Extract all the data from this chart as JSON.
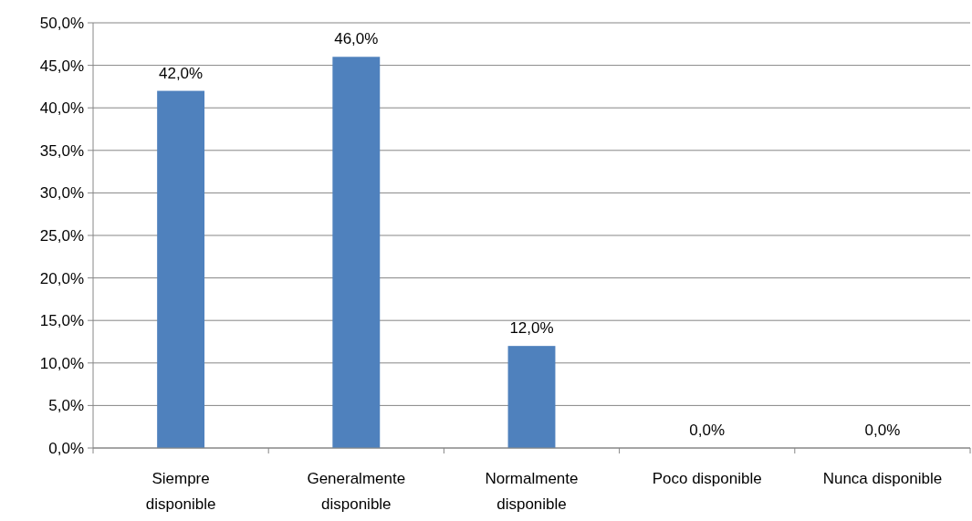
{
  "chart_data": {
    "type": "bar",
    "categories": [
      "Siempre disponible",
      "Generalmente disponible",
      "Normalmente disponible",
      "Poco disponible",
      "Nunca disponible"
    ],
    "values": [
      42.0,
      46.0,
      12.0,
      0.0,
      0.0
    ],
    "value_labels": [
      "42,0%",
      "46,0%",
      "12,0%",
      "0,0%",
      "0,0%"
    ],
    "color": "#4f81bd",
    "ylim": [
      0,
      50
    ],
    "yticks": [
      {
        "value": 0,
        "label": "0,0%"
      },
      {
        "value": 5,
        "label": "5,0%"
      },
      {
        "value": 10,
        "label": "10,0%"
      },
      {
        "value": 15,
        "label": "15,0%"
      },
      {
        "value": 20,
        "label": "20,0%"
      },
      {
        "value": 25,
        "label": "25,0%"
      },
      {
        "value": 30,
        "label": "30,0%"
      },
      {
        "value": 35,
        "label": "35,0%"
      },
      {
        "value": 40,
        "label": "40,0%"
      },
      {
        "value": 45,
        "label": "45,0%"
      },
      {
        "value": 50,
        "label": "50,0%"
      }
    ],
    "grid": "y"
  }
}
